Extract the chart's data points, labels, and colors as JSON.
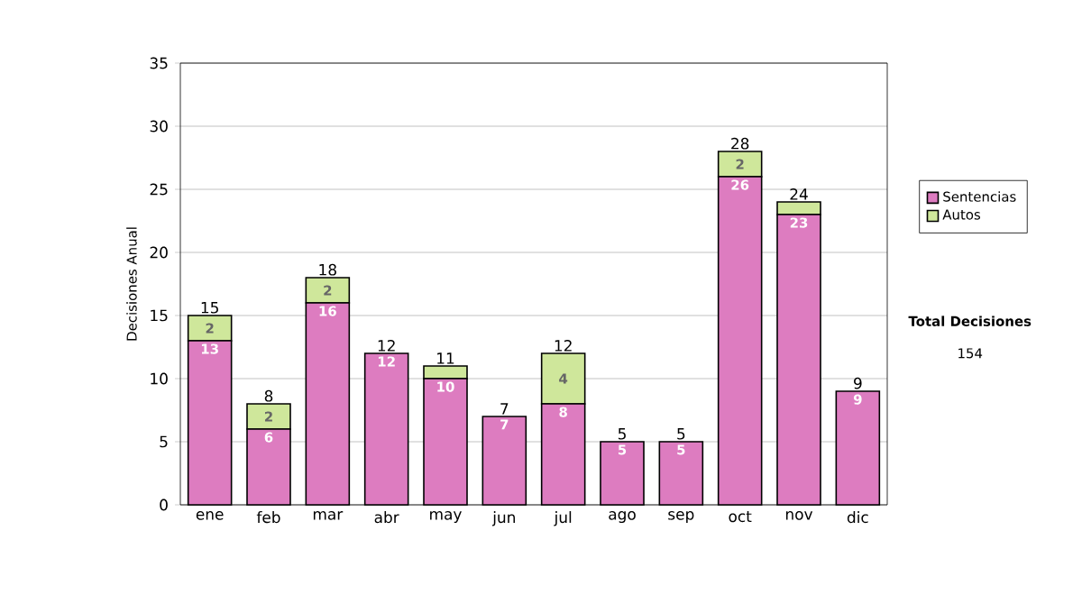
{
  "chart_data": {
    "type": "bar",
    "stacked": true,
    "ylabel": "Decisiones Anual",
    "categories": [
      "ene",
      "feb",
      "mar",
      "abr",
      "may",
      "jun",
      "jul",
      "ago",
      "sep",
      "oct",
      "nov",
      "dic"
    ],
    "series": [
      {
        "name": "Sentencias",
        "color": "#dd7cc0",
        "values": [
          13,
          6,
          16,
          12,
          10,
          7,
          8,
          5,
          5,
          26,
          23,
          9
        ],
        "value_labels": [
          "13",
          "6",
          "16",
          "12",
          "10",
          "7",
          "8",
          "5",
          "5",
          "26",
          "23",
          "9"
        ]
      },
      {
        "name": "Autos",
        "color": "#cfe79b",
        "values": [
          2,
          2,
          2,
          0,
          1,
          0,
          4,
          0,
          0,
          2,
          1,
          0
        ],
        "value_labels": [
          "2",
          "2",
          "2",
          null,
          null,
          null,
          "4",
          null,
          null,
          "2",
          null,
          null
        ]
      }
    ],
    "totals": [
      "15",
      "8",
      "18",
      "12",
      "11",
      "7",
      "12",
      "5",
      "5",
      "28",
      "24",
      "9"
    ],
    "ylim": [
      0,
      35
    ],
    "yticks": [
      0,
      5,
      10,
      15,
      20,
      25,
      30,
      35
    ],
    "grid": "y",
    "legend": "right",
    "annotations": [
      "Total Decisiones",
      "154"
    ]
  }
}
